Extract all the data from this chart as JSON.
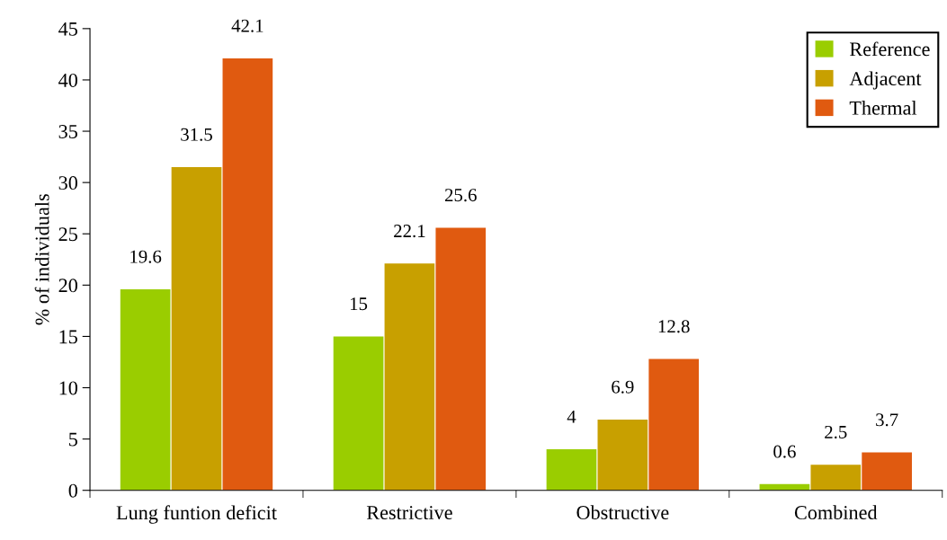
{
  "chart_data": {
    "type": "bar",
    "ylabel": "% of individuals",
    "categories": [
      "Lung funtion deficit",
      "Restrictive",
      "Obstructive",
      "Combined"
    ],
    "series": [
      {
        "name": "Reference",
        "color": "#9acd00",
        "values": [
          19.6,
          15,
          4,
          0.6
        ]
      },
      {
        "name": "Adjacent",
        "color": "#c8a000",
        "values": [
          31.5,
          22.1,
          6.9,
          2.5
        ]
      },
      {
        "name": "Thermal",
        "color": "#e05a10",
        "values": [
          42.1,
          25.6,
          12.8,
          3.7
        ]
      }
    ],
    "ylim": [
      0,
      45
    ],
    "yticks": [
      0,
      5,
      10,
      15,
      20,
      25,
      30,
      35,
      40,
      45
    ],
    "data_labels": true,
    "legend": "top right",
    "grid": false
  }
}
